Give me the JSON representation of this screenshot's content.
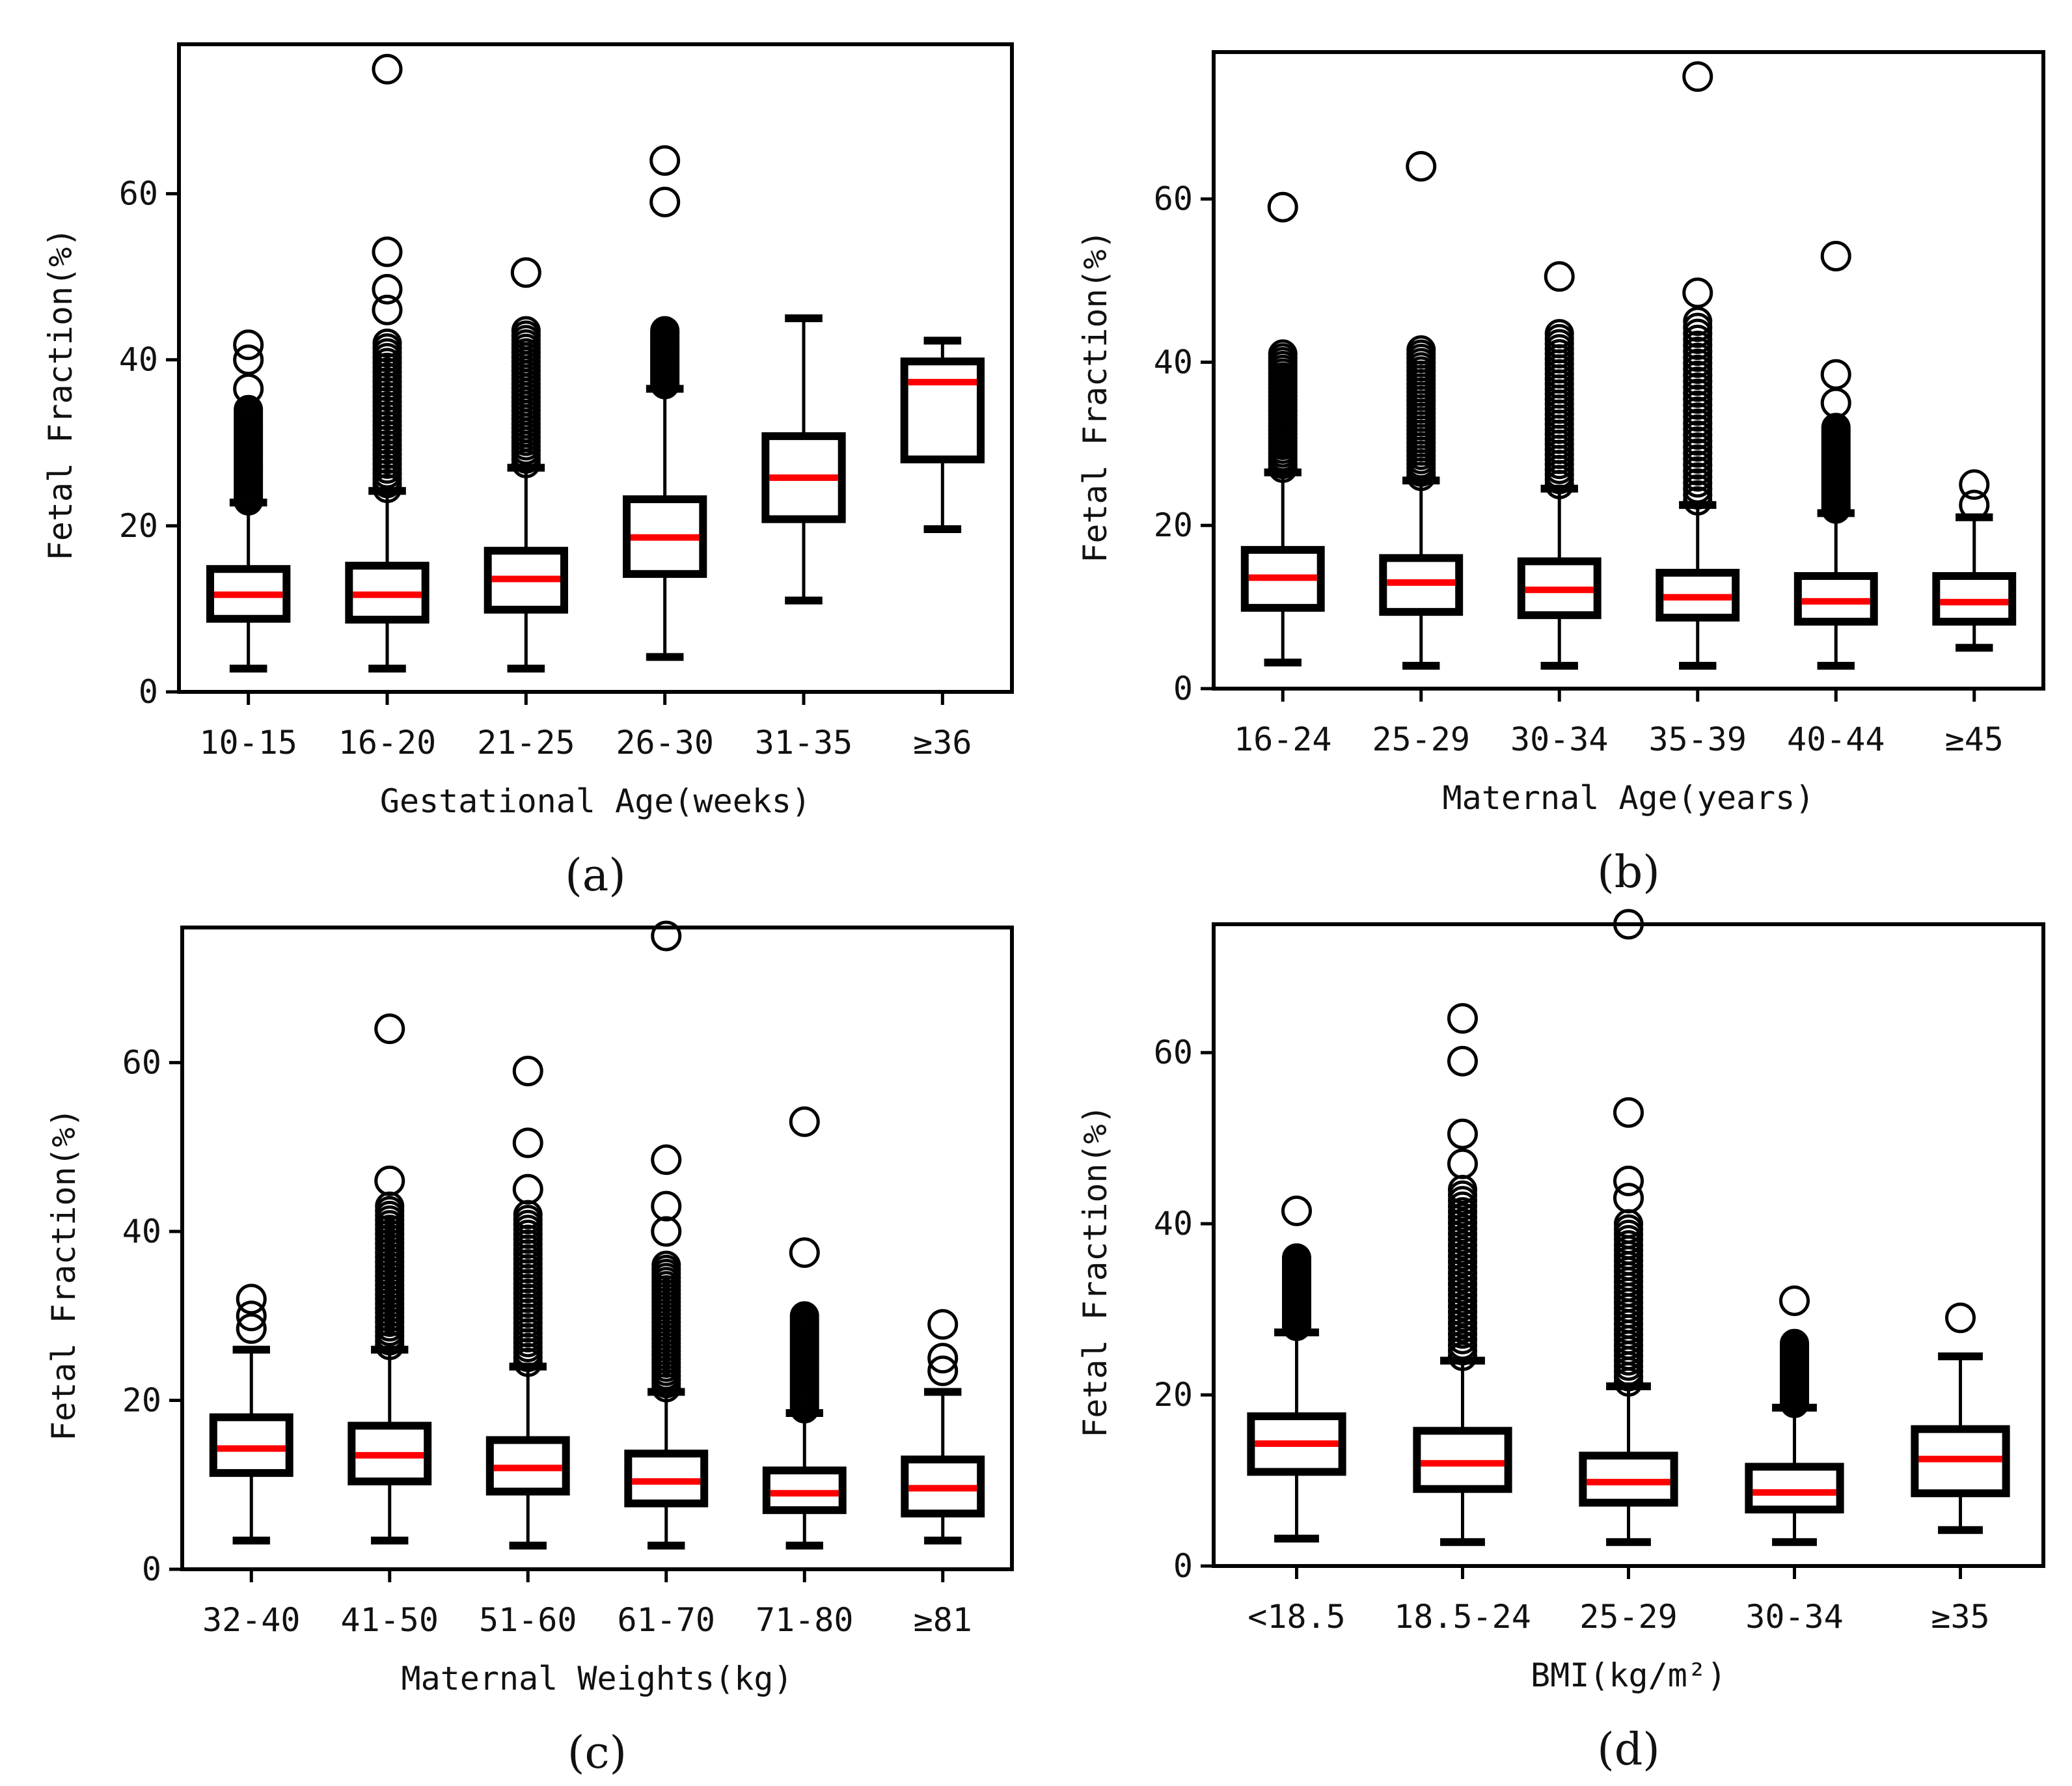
{
  "chart_data": [
    {
      "id": "a",
      "type": "boxplot",
      "panel_label": "(a)",
      "xlabel": "Gestational Age(weeks)",
      "ylabel": "Fetal Fraction(%)",
      "ylim": [
        0,
        78
      ],
      "yticks": [
        0,
        20,
        40,
        60
      ],
      "colors": {
        "box": "#000000",
        "median": "#ff0000"
      },
      "categories": [
        "10-15",
        "16-20",
        "21-25",
        "26-30",
        "31-35",
        "≥36"
      ],
      "boxes": [
        {
          "min": 2.8,
          "q1": 8.8,
          "median": 11.7,
          "q3": 14.8,
          "max": 22.8,
          "outliers_range": [
            23,
            34
          ],
          "outliers": [
            36.5,
            40,
            41.8
          ]
        },
        {
          "min": 2.8,
          "q1": 8.7,
          "median": 11.7,
          "q3": 15.2,
          "max": 24.2,
          "outliers_range": [
            24.5,
            42
          ],
          "outliers": [
            46,
            48.5,
            53,
            75
          ]
        },
        {
          "min": 2.8,
          "q1": 9.9,
          "median": 13.6,
          "q3": 17.0,
          "max": 27.0,
          "outliers_range": [
            27.5,
            43.5
          ],
          "outliers": [
            50.5
          ]
        },
        {
          "min": 4.2,
          "q1": 14.2,
          "median": 18.6,
          "q3": 23.2,
          "max": 36.5,
          "outliers_range": [
            37,
            43.5
          ],
          "outliers": [
            59,
            64
          ]
        },
        {
          "min": 11.0,
          "q1": 20.8,
          "median": 25.8,
          "q3": 30.8,
          "max": 45.0,
          "outliers_range": null,
          "outliers": []
        },
        {
          "min": 19.6,
          "q1": 28.0,
          "median": 37.3,
          "q3": 39.8,
          "max": 42.3,
          "outliers_range": null,
          "outliers": []
        }
      ]
    },
    {
      "id": "b",
      "type": "boxplot",
      "panel_label": "(b)",
      "xlabel": "Maternal Age(years)",
      "ylabel": "Fetal Fraction(%)",
      "ylim": [
        0,
        78
      ],
      "yticks": [
        0,
        20,
        40,
        60
      ],
      "colors": {
        "box": "#000000",
        "median": "#ff0000"
      },
      "categories": [
        "16-24",
        "25-29",
        "30-34",
        "35-39",
        "40-44",
        "≥45"
      ],
      "boxes": [
        {
          "min": 3.2,
          "q1": 9.9,
          "median": 13.6,
          "q3": 17.0,
          "max": 26.5,
          "outliers_range": [
            27,
            41
          ],
          "outliers": [
            59
          ]
        },
        {
          "min": 2.8,
          "q1": 9.4,
          "median": 13.0,
          "q3": 16.0,
          "max": 25.5,
          "outliers_range": [
            26,
            41.5
          ],
          "outliers": [
            64
          ]
        },
        {
          "min": 2.8,
          "q1": 9.0,
          "median": 12.1,
          "q3": 15.6,
          "max": 24.5,
          "outliers_range": [
            25,
            43.5
          ],
          "outliers": [
            50.5
          ]
        },
        {
          "min": 2.8,
          "q1": 8.7,
          "median": 11.2,
          "q3": 14.2,
          "max": 22.5,
          "outliers_range": [
            23,
            45
          ],
          "outliers": [
            48.5,
            75
          ]
        },
        {
          "min": 2.8,
          "q1": 8.2,
          "median": 10.7,
          "q3": 13.8,
          "max": 21.5,
          "outliers_range": [
            22,
            32
          ],
          "outliers": [
            35,
            38.5,
            53
          ]
        },
        {
          "min": 5.0,
          "q1": 8.2,
          "median": 10.6,
          "q3": 13.8,
          "max": 21.0,
          "outliers_range": null,
          "outliers": [
            22.5,
            25
          ]
        }
      ]
    },
    {
      "id": "c",
      "type": "boxplot",
      "panel_label": "(c)",
      "xlabel": "Maternal Weights(kg)",
      "ylabel": "Fetal Fraction(%)",
      "ylim": [
        0,
        76
      ],
      "yticks": [
        0,
        20,
        40,
        60
      ],
      "colors": {
        "box": "#000000",
        "median": "#ff0000"
      },
      "categories": [
        "32-40",
        "41-50",
        "51-60",
        "61-70",
        "71-80",
        "≥81"
      ],
      "boxes": [
        {
          "min": 3.4,
          "q1": 11.4,
          "median": 14.3,
          "q3": 18.0,
          "max": 26.0,
          "outliers_range": null,
          "outliers": [
            28.5,
            30,
            32
          ]
        },
        {
          "min": 3.4,
          "q1": 10.4,
          "median": 13.5,
          "q3": 17.0,
          "max": 26.0,
          "outliers_range": [
            26.5,
            43
          ],
          "outliers": [
            46,
            64
          ]
        },
        {
          "min": 2.8,
          "q1": 9.2,
          "median": 12.0,
          "q3": 15.3,
          "max": 24.0,
          "outliers_range": [
            24.5,
            42
          ],
          "outliers": [
            45,
            50.5,
            59
          ]
        },
        {
          "min": 2.8,
          "q1": 7.8,
          "median": 10.4,
          "q3": 13.7,
          "max": 21.0,
          "outliers_range": [
            21.5,
            36
          ],
          "outliers": [
            40,
            43,
            48.5,
            75
          ]
        },
        {
          "min": 2.8,
          "q1": 7.0,
          "median": 9.0,
          "q3": 11.7,
          "max": 18.5,
          "outliers_range": [
            19,
            30
          ],
          "outliers": [
            37.5,
            53
          ]
        },
        {
          "min": 3.4,
          "q1": 6.6,
          "median": 9.6,
          "q3": 13.0,
          "max": 21.0,
          "outliers_range": null,
          "outliers": [
            23.5,
            25,
            29
          ]
        }
      ]
    },
    {
      "id": "d",
      "type": "boxplot",
      "panel_label": "(d)",
      "xlabel": "BMI(kg/m²)",
      "ylabel": "Fetal Fraction(%)",
      "ylim": [
        0,
        75
      ],
      "yticks": [
        0,
        20,
        40,
        60
      ],
      "colors": {
        "box": "#000000",
        "median": "#ff0000"
      },
      "categories": [
        "<18.5",
        "18.5-24",
        "25-29",
        "30-34",
        "≥35"
      ],
      "boxes": [
        {
          "min": 3.2,
          "q1": 11.0,
          "median": 14.3,
          "q3": 17.5,
          "max": 27.3,
          "outliers_range": [
            28,
            36
          ],
          "outliers": [
            41.5
          ]
        },
        {
          "min": 2.8,
          "q1": 9.0,
          "median": 12.0,
          "q3": 15.8,
          "max": 24.0,
          "outliers_range": [
            24.5,
            44
          ],
          "outliers": [
            47,
            50.5,
            59,
            64
          ]
        },
        {
          "min": 2.8,
          "q1": 7.4,
          "median": 9.8,
          "q3": 12.9,
          "max": 21.0,
          "outliers_range": [
            21.5,
            40
          ],
          "outliers": [
            43,
            45,
            53,
            75
          ]
        },
        {
          "min": 2.8,
          "q1": 6.6,
          "median": 8.6,
          "q3": 11.6,
          "max": 18.5,
          "outliers_range": [
            19,
            26
          ],
          "outliers": [
            31
          ]
        },
        {
          "min": 4.2,
          "q1": 8.5,
          "median": 12.5,
          "q3": 16.0,
          "max": 24.5,
          "outliers_range": null,
          "outliers": [
            29
          ]
        }
      ]
    }
  ]
}
